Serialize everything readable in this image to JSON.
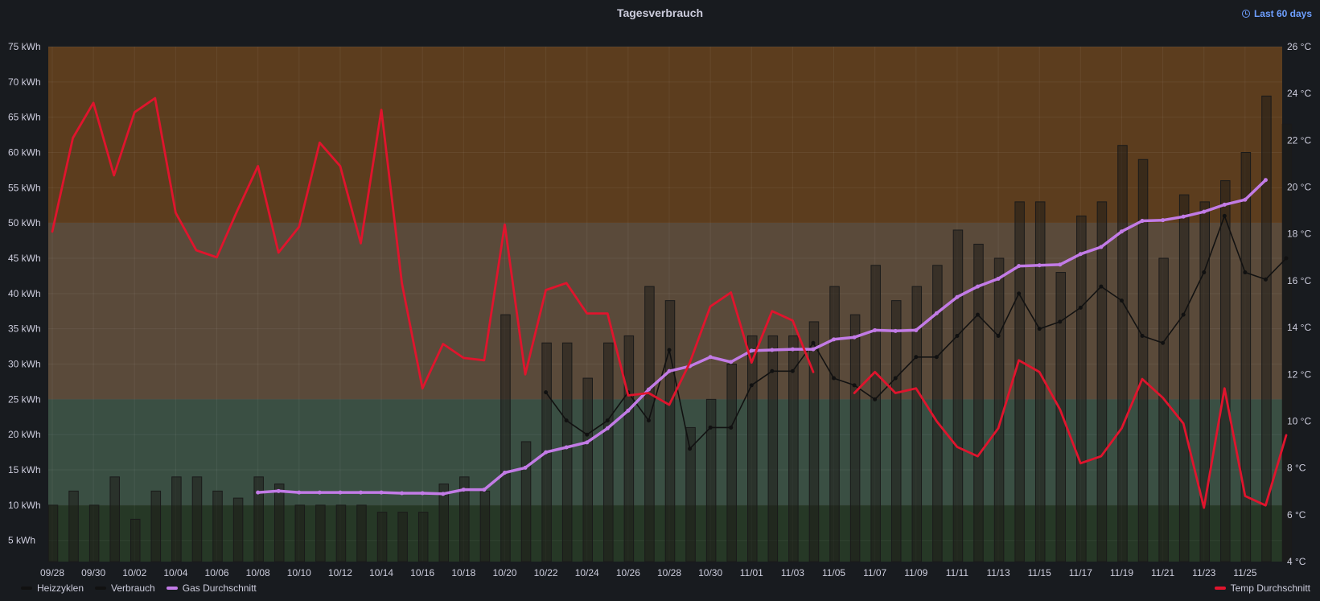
{
  "panel": {
    "title": "Tagesverbrauch",
    "time_range": "Last 60 days",
    "clock_icon": "clock-icon"
  },
  "colors": {
    "background": "#181b1f",
    "band_high": "#5c3d1e",
    "band_mid": "#5a4a3a",
    "band_low": "#3a4f43",
    "band_base": "#263826",
    "bar_fill": "#3d3426",
    "bar_stroke": "#1a1a1a",
    "heizzyklen": "#1d1d1d",
    "verbrauch": "#111111",
    "gas": "#c27be6",
    "temp": "#e0142d",
    "text": "#ccccdc"
  },
  "chart_data": {
    "type": "bar",
    "title": "Tagesverbrauch",
    "x": [
      "09/28",
      "09/29",
      "09/30",
      "10/01",
      "10/02",
      "10/03",
      "10/04",
      "10/05",
      "10/06",
      "10/07",
      "10/08",
      "10/09",
      "10/10",
      "10/11",
      "10/12",
      "10/13",
      "10/14",
      "10/15",
      "10/16",
      "10/17",
      "10/18",
      "10/19",
      "10/20",
      "10/21",
      "10/22",
      "10/23",
      "10/24",
      "10/25",
      "10/26",
      "10/27",
      "10/28",
      "10/29",
      "10/30",
      "10/31",
      "11/01",
      "11/02",
      "11/03",
      "11/04",
      "11/05",
      "11/06",
      "11/07",
      "11/08",
      "11/09",
      "11/10",
      "11/11",
      "11/12",
      "11/13",
      "11/14",
      "11/15",
      "11/16",
      "11/17",
      "11/18",
      "11/19",
      "11/20",
      "11/21",
      "11/22",
      "11/23",
      "11/24",
      "11/25",
      "11/26",
      "11/27"
    ],
    "x_tick_labels": [
      "09/28",
      "09/30",
      "10/02",
      "10/04",
      "10/06",
      "10/08",
      "10/10",
      "10/12",
      "10/14",
      "10/16",
      "10/18",
      "10/20",
      "10/22",
      "10/24",
      "10/26",
      "10/28",
      "10/30",
      "11/01",
      "11/03",
      "11/05",
      "11/07",
      "11/09",
      "11/11",
      "11/13",
      "11/15",
      "11/17",
      "11/19",
      "11/21",
      "11/23",
      "11/25"
    ],
    "y_left": {
      "ylim": [
        2,
        75
      ],
      "ticks": [
        5,
        10,
        15,
        20,
        25,
        30,
        35,
        40,
        45,
        50,
        55,
        60,
        65,
        70,
        75
      ],
      "unit": "kWh"
    },
    "y_right": {
      "ylim": [
        4,
        26
      ],
      "ticks": [
        4,
        6,
        8,
        10,
        12,
        14,
        16,
        18,
        20,
        22,
        24,
        26
      ],
      "unit": "°C"
    },
    "thresholds": [
      {
        "from": 50,
        "to": 75,
        "color": "band_high"
      },
      {
        "from": 25,
        "to": 50,
        "color": "band_mid"
      },
      {
        "from": 10,
        "to": 25,
        "color": "band_low"
      },
      {
        "from": 2,
        "to": 10,
        "color": "band_base"
      }
    ],
    "series": [
      {
        "name": "Heizzyklen",
        "kind": "bars",
        "axis": "left",
        "values": [
          10,
          12,
          10,
          14,
          8,
          12,
          14,
          14,
          12,
          11,
          14,
          13,
          10,
          10,
          10,
          10,
          9,
          9,
          9,
          13,
          14,
          12,
          37,
          19,
          33,
          33,
          28,
          33,
          34,
          41,
          39,
          21,
          25,
          30,
          34,
          34,
          34,
          36,
          41,
          37,
          44,
          39,
          41,
          44,
          49,
          47,
          45,
          53,
          53,
          43,
          51,
          53,
          61,
          59,
          45,
          54,
          53,
          56,
          60,
          68,
          64
        ]
      },
      {
        "name": "Verbrauch",
        "kind": "line",
        "axis": "left",
        "values": [
          null,
          null,
          null,
          null,
          null,
          null,
          null,
          null,
          null,
          null,
          null,
          null,
          null,
          null,
          null,
          null,
          null,
          null,
          null,
          null,
          null,
          null,
          null,
          null,
          26,
          22,
          20,
          22,
          26,
          22,
          32,
          18,
          21,
          21,
          27,
          29,
          29,
          33,
          28,
          27,
          25,
          28,
          31,
          31,
          34,
          37,
          34,
          40,
          35,
          36,
          38,
          41,
          39,
          34,
          33,
          37,
          43,
          51,
          43,
          42,
          45
        ]
      },
      {
        "name": "Gas Durchschnitt",
        "kind": "line",
        "axis": "left",
        "values": [
          null,
          null,
          null,
          null,
          null,
          null,
          null,
          null,
          null,
          null,
          11.8,
          12.0,
          11.8,
          11.8,
          11.8,
          11.8,
          11.8,
          11.7,
          11.7,
          11.6,
          12.2,
          12.2,
          14.6,
          15.3,
          17.5,
          18.2,
          18.9,
          20.9,
          23.4,
          26.4,
          29.0,
          29.7,
          31.0,
          30.3,
          31.9,
          32.0,
          32.1,
          32.1,
          33.5,
          33.8,
          34.8,
          34.7,
          34.8,
          37.2,
          39.5,
          41.0,
          42.1,
          43.9,
          44.0,
          44.1,
          45.6,
          46.6,
          48.8,
          50.3,
          50.4,
          50.9,
          51.6,
          52.6,
          53.3,
          56.1,
          null
        ]
      },
      {
        "name": "Temp Durchschnitt",
        "kind": "line",
        "axis": "right",
        "values": [
          18.1,
          22.1,
          23.6,
          20.5,
          23.2,
          23.8,
          18.9,
          17.3,
          17.0,
          19.0,
          20.9,
          17.2,
          18.3,
          21.9,
          20.9,
          17.6,
          23.3,
          15.9,
          11.4,
          13.3,
          12.7,
          12.6,
          18.4,
          12.0,
          15.6,
          15.9,
          14.6,
          14.6,
          11.1,
          11.2,
          10.7,
          12.5,
          14.9,
          15.5,
          12.5,
          14.7,
          14.3,
          12.1,
          null,
          11.2,
          12.1,
          11.2,
          11.4,
          10.0,
          8.9,
          8.5,
          9.7,
          12.6,
          12.1,
          10.5,
          8.2,
          8.5,
          9.7,
          11.8,
          11.0,
          9.9,
          6.3,
          11.4,
          6.8,
          6.4,
          9.4
        ]
      }
    ],
    "legend": {
      "left": [
        "Heizzyklen",
        "Verbrauch",
        "Gas Durchschnitt"
      ],
      "right": [
        "Temp Durchschnitt"
      ],
      "placement": "bottom"
    }
  }
}
